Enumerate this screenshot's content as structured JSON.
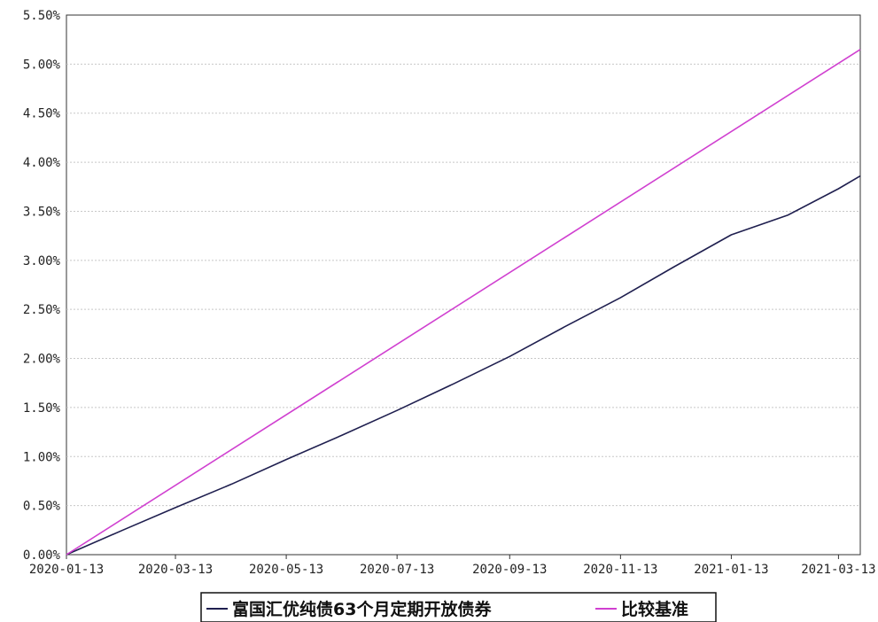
{
  "chart_data": {
    "type": "line",
    "title": "",
    "xlabel": "",
    "ylabel": "",
    "x_tick_labels": [
      "2020-01-13",
      "2020-03-13",
      "2020-05-13",
      "2020-07-13",
      "2020-09-13",
      "2020-11-13",
      "2021-01-13",
      "2021-03-13"
    ],
    "y_tick_labels": [
      "0.00%",
      "0.50%",
      "1.00%",
      "1.50%",
      "2.00%",
      "2.50%",
      "3.00%",
      "3.50%",
      "4.00%",
      "4.50%",
      "5.00%",
      "5.50%"
    ],
    "xlim": [
      "2020-01-13",
      "2021-03-25"
    ],
    "ylim": [
      0,
      5.5
    ],
    "y_unit": "%",
    "grid": true,
    "legend_position": "bottom",
    "series": [
      {
        "name": "富国汇优纯债63个月定期开放债券",
        "color": "#1f1f4f",
        "x": [
          "2020-01-13",
          "2020-02-13",
          "2020-03-13",
          "2020-04-13",
          "2020-05-13",
          "2020-06-13",
          "2020-07-13",
          "2020-08-13",
          "2020-09-13",
          "2020-10-13",
          "2020-11-13",
          "2020-12-13",
          "2021-01-13",
          "2021-02-13",
          "2021-03-13",
          "2021-03-25"
        ],
        "values": [
          0.0,
          0.25,
          0.48,
          0.72,
          0.97,
          1.22,
          1.47,
          1.74,
          2.02,
          2.32,
          2.62,
          2.94,
          3.26,
          3.46,
          3.73,
          3.86
        ]
      },
      {
        "name": "比较基准",
        "color": "#d040d0",
        "x": [
          "2020-01-13",
          "2021-03-25"
        ],
        "values": [
          0.0,
          5.15
        ]
      }
    ]
  }
}
